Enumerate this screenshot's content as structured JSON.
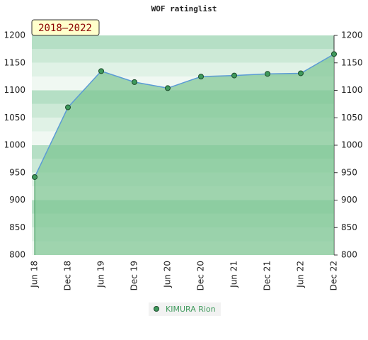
{
  "chart_data": {
    "type": "line",
    "title": "WOF ratinglist",
    "annotation": "2018–2022",
    "categories": [
      "Jun 18",
      "Dec 18",
      "Jun 19",
      "Dec 19",
      "Jun 20",
      "Dec 20",
      "Jun 21",
      "Dec 21",
      "Jun 22",
      "Dec 22"
    ],
    "series": [
      {
        "name": "KIMURA Rion",
        "color": "#5b9bd5",
        "values": [
          942,
          1069,
          1135,
          1115,
          1104,
          1125,
          1127,
          1130,
          1131,
          1166
        ]
      }
    ],
    "area_color": "#7cc592",
    "marker_color": "#3f9a5c",
    "ylim": [
      800,
      1200
    ],
    "yticks": [
      800,
      850,
      900,
      950,
      1000,
      1050,
      1100,
      1150,
      1200
    ],
    "y2lim": [
      800,
      1200
    ],
    "y2ticks": [
      800,
      850,
      900,
      950,
      1000,
      1050,
      1100,
      1150,
      1200
    ]
  }
}
